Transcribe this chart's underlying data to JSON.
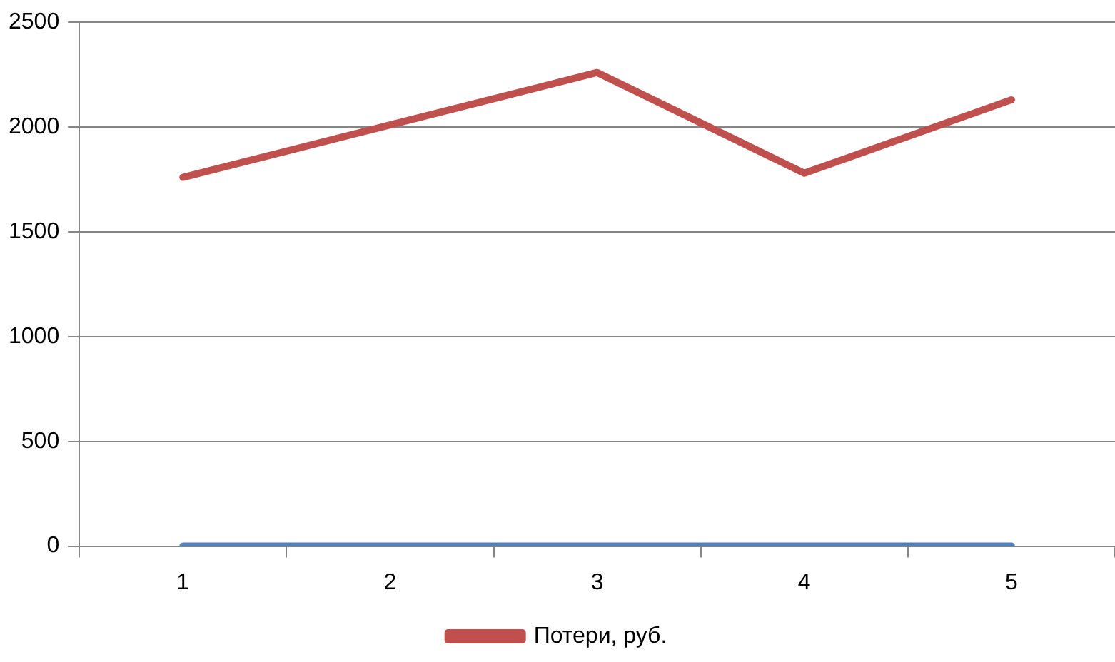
{
  "chart_data": {
    "type": "line",
    "categories": [
      "1",
      "2",
      "3",
      "4",
      "5"
    ],
    "series": [
      {
        "name": "Потери, руб.",
        "color": "#c0504d",
        "values": [
          1760,
          2010,
          2260,
          1780,
          2130
        ]
      },
      {
        "color": "#4f81bd",
        "values": [
          0,
          0,
          0,
          0,
          0
        ]
      }
    ],
    "ylim": [
      0,
      2500
    ],
    "yticks": [
      0,
      500,
      1000,
      1500,
      2000,
      2500
    ],
    "grid": "y",
    "legend": "bottom",
    "marker": "none",
    "line_style": "solid"
  }
}
